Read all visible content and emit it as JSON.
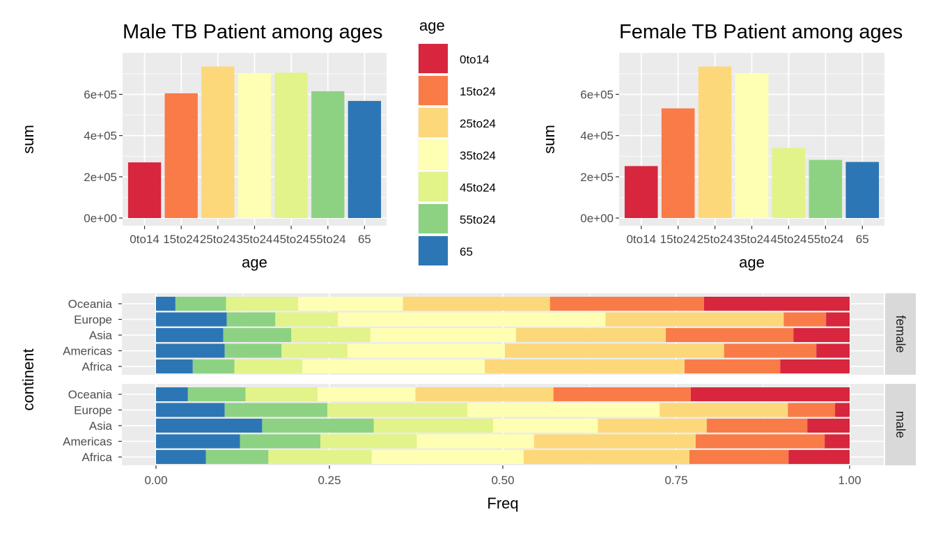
{
  "palette": {
    "0to14": "#D7263D",
    "15to24": "#F97B48",
    "25to24": "#FDD87A",
    "35to24": "#FFFFB3",
    "45to24": "#E2F38A",
    "55to24": "#8DD283",
    "65": "#2C76B5"
  },
  "chart_data": [
    {
      "type": "bar",
      "title": "Male TB Patient among ages",
      "xlabel": "age",
      "ylabel": "sum",
      "categories": [
        "0to14",
        "15to24",
        "25to24",
        "35to24",
        "45to24",
        "55to24",
        "65"
      ],
      "values": [
        270000,
        605000,
        735000,
        703000,
        705000,
        615000,
        568000
      ],
      "y_ticks": [
        "0e+00",
        "2e+05",
        "4e+05",
        "6e+05"
      ],
      "ylim": [
        0,
        740000
      ]
    },
    {
      "type": "bar",
      "title": "Female TB Patient among ages",
      "xlabel": "age",
      "ylabel": "sum",
      "categories": [
        "0to14",
        "15to24",
        "25to24",
        "35to24",
        "45to24",
        "55to24",
        "65"
      ],
      "values": [
        252000,
        532000,
        735000,
        703000,
        340000,
        282000,
        272000
      ],
      "y_ticks": [
        "0e+00",
        "2e+05",
        "4e+05",
        "6e+05"
      ],
      "ylim": [
        0,
        740000
      ]
    },
    {
      "type": "bar",
      "orientation": "horizontal",
      "stacked": "fill",
      "xlabel": "Freq",
      "ylabel": "continent",
      "x_ticks": [
        "0.00",
        "0.25",
        "0.50",
        "0.75",
        "1.00"
      ],
      "categories": [
        "Oceania",
        "Europe",
        "Asia",
        "Americas",
        "Africa"
      ],
      "stack_order_from_left": [
        "65",
        "55to24",
        "45to24",
        "35to24",
        "25to24",
        "15to24",
        "0to14"
      ],
      "facets": [
        {
          "label": "female",
          "rows": {
            "Oceania": [
              0.028,
              0.073,
              0.104,
              0.151,
              0.212,
              0.222,
              0.21
            ],
            "Europe": [
              0.102,
              0.07,
              0.09,
              0.386,
              0.257,
              0.061,
              0.034
            ],
            "Asia": [
              0.097,
              0.098,
              0.114,
              0.21,
              0.216,
              0.184,
              0.081
            ],
            "Americas": [
              0.099,
              0.082,
              0.095,
              0.227,
              0.316,
              0.133,
              0.048
            ],
            "Africa": [
              0.053,
              0.06,
              0.098,
              0.263,
              0.288,
              0.138,
              0.1
            ]
          }
        },
        {
          "label": "male",
          "rows": {
            "Oceania": [
              0.046,
              0.083,
              0.104,
              0.141,
              0.199,
              0.198,
              0.229
            ],
            "Europe": [
              0.099,
              0.148,
              0.202,
              0.277,
              0.185,
              0.068,
              0.021
            ],
            "Asia": [
              0.153,
              0.161,
              0.172,
              0.151,
              0.157,
              0.145,
              0.061
            ],
            "Americas": [
              0.121,
              0.116,
              0.139,
              0.169,
              0.233,
              0.186,
              0.036
            ],
            "Africa": [
              0.072,
              0.09,
              0.149,
              0.219,
              0.239,
              0.143,
              0.088
            ]
          }
        }
      ]
    }
  ],
  "legend": {
    "title": "age",
    "items": [
      "0to14",
      "15to24",
      "25to24",
      "35to24",
      "45to24",
      "55to24",
      "65"
    ]
  }
}
